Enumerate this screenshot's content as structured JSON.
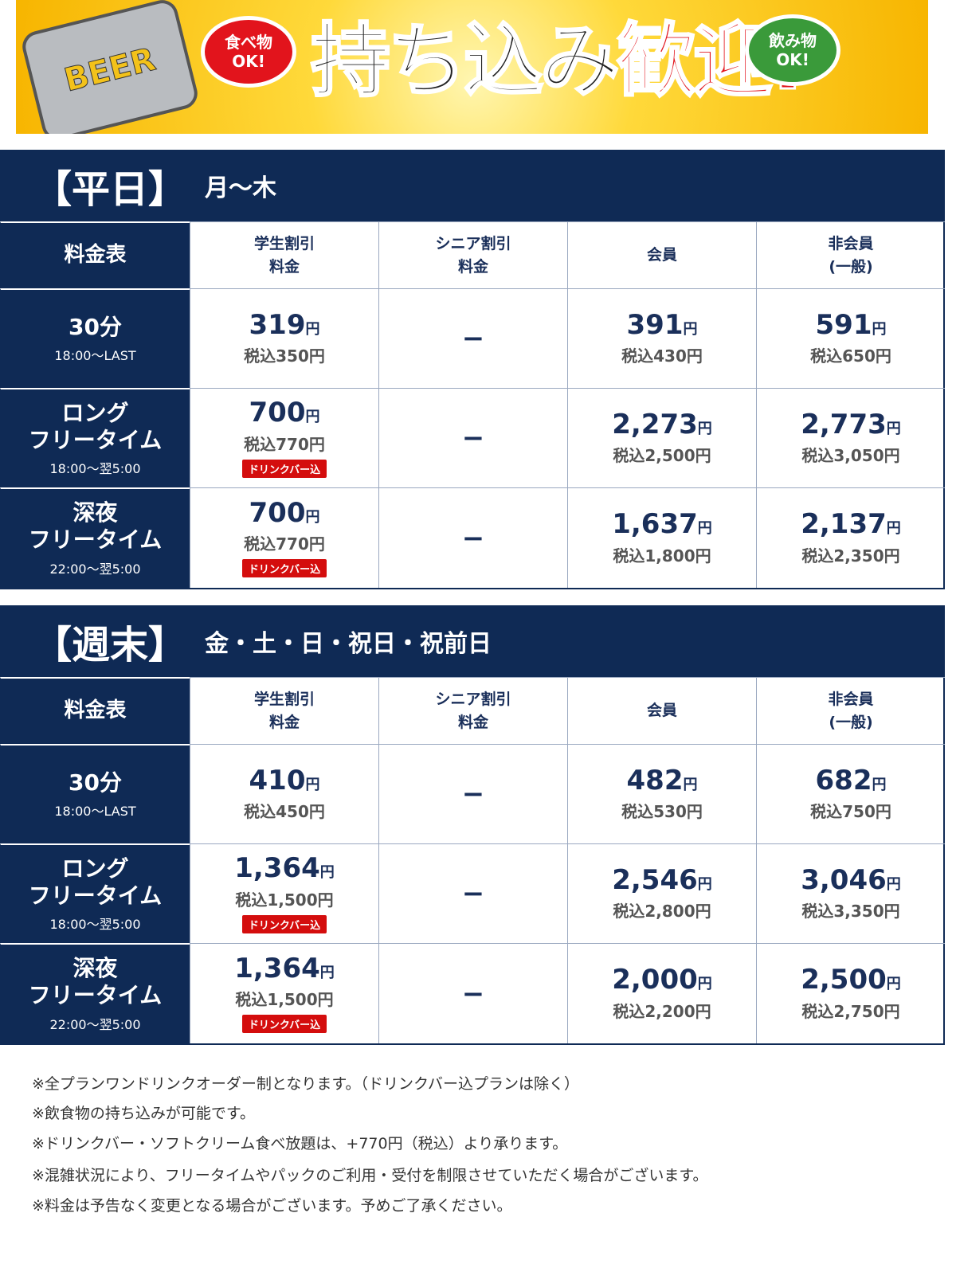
{
  "banner": {
    "can_label": "BEER",
    "food_bubble": [
      "食べ物",
      "OK!"
    ],
    "title_main": "持ち込み",
    "title_accent": "歓迎!",
    "drink_bubble": [
      "飲み物",
      "OK!"
    ]
  },
  "sections": [
    {
      "title": "【平日】",
      "subtitle": "月〜木",
      "header": {
        "label": "料金表",
        "columns": [
          [
            "学生割引",
            "料金"
          ],
          [
            "シニア割引",
            "料金"
          ],
          [
            "会員"
          ],
          [
            "非会員",
            "(一般)"
          ]
        ]
      },
      "rows": [
        {
          "name": [
            "30分"
          ],
          "time": "18:00〜LAST",
          "cells": [
            {
              "price": "319",
              "unit": "円",
              "tax": "税込350円"
            },
            {
              "dash": "−"
            },
            {
              "price": "391",
              "unit": "円",
              "tax": "税込430円"
            },
            {
              "price": "591",
              "unit": "円",
              "tax": "税込650円"
            }
          ]
        },
        {
          "name": [
            "ロング",
            "フリータイム"
          ],
          "time": "18:00〜翌5:00",
          "cells": [
            {
              "price": "700",
              "unit": "円",
              "tax": "税込770円",
              "badge": "ドリンクバー込"
            },
            {
              "dash": "−"
            },
            {
              "price": "2,273",
              "unit": "円",
              "tax": "税込2,500円"
            },
            {
              "price": "2,773",
              "unit": "円",
              "tax": "税込3,050円"
            }
          ]
        },
        {
          "name": [
            "深夜",
            "フリータイム"
          ],
          "time": "22:00〜翌5:00",
          "cells": [
            {
              "price": "700",
              "unit": "円",
              "tax": "税込770円",
              "badge": "ドリンクバー込"
            },
            {
              "dash": "−"
            },
            {
              "price": "1,637",
              "unit": "円",
              "tax": "税込1,800円"
            },
            {
              "price": "2,137",
              "unit": "円",
              "tax": "税込2,350円"
            }
          ]
        }
      ]
    },
    {
      "title": "【週末】",
      "subtitle": "金・土・日・祝日・祝前日",
      "header": {
        "label": "料金表",
        "columns": [
          [
            "学生割引",
            "料金"
          ],
          [
            "シニア割引",
            "料金"
          ],
          [
            "会員"
          ],
          [
            "非会員",
            "(一般)"
          ]
        ]
      },
      "rows": [
        {
          "name": [
            "30分"
          ],
          "time": "18:00〜LAST",
          "cells": [
            {
              "price": "410",
              "unit": "円",
              "tax": "税込450円"
            },
            {
              "dash": "−"
            },
            {
              "price": "482",
              "unit": "円",
              "tax": "税込530円"
            },
            {
              "price": "682",
              "unit": "円",
              "tax": "税込750円"
            }
          ]
        },
        {
          "name": [
            "ロング",
            "フリータイム"
          ],
          "time": "18:00〜翌5:00",
          "cells": [
            {
              "price": "1,364",
              "unit": "円",
              "tax": "税込1,500円",
              "badge": "ドリンクバー込"
            },
            {
              "dash": "−"
            },
            {
              "price": "2,546",
              "unit": "円",
              "tax": "税込2,800円"
            },
            {
              "price": "3,046",
              "unit": "円",
              "tax": "税込3,350円"
            }
          ]
        },
        {
          "name": [
            "深夜",
            "フリータイム"
          ],
          "time": "22:00〜翌5:00",
          "cells": [
            {
              "price": "1,364",
              "unit": "円",
              "tax": "税込1,500円",
              "badge": "ドリンクバー込"
            },
            {
              "dash": "−"
            },
            {
              "price": "2,000",
              "unit": "円",
              "tax": "税込2,200円"
            },
            {
              "price": "2,500",
              "unit": "円",
              "tax": "税込2,750円"
            }
          ]
        }
      ]
    }
  ],
  "notes": [
    "※全プランワンドリンクオーダー制となります。（ドリンクバー込プランは除く）",
    "※飲食物の持ち込みが可能です。",
    "※ドリンクバー・ソフトクリーム食べ放題は、+770円（税込）より承ります。",
    "※混雑状況により、フリータイムやパックのご利用・受付を制限させていただく場合がございます。",
    "※料金は予告なく変更となる場合がございます。予めご了承ください。"
  ]
}
